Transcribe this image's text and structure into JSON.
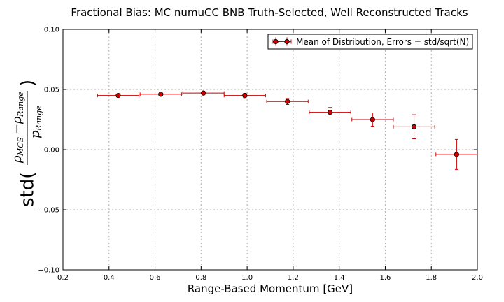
{
  "chart_data": {
    "type": "scatter",
    "title": "Fractional Bias: MC numuCC BNB Truth-Selected, Well Reconstructed Tracks",
    "xlabel": "Range-Based Momentum [GeV]",
    "ylabel": {
      "prefix": "std(",
      "num_p": "p",
      "num_sub1": "MCS",
      "minus": "−",
      "num_p2": "p",
      "num_sub2": "Range",
      "den_p": "p",
      "den_sub": "Range",
      "suffix": ")"
    },
    "xlim": [
      0.2,
      2.0
    ],
    "ylim": [
      -0.1,
      0.1
    ],
    "xticks": [
      "0.2",
      "0.4",
      "0.6",
      "0.8",
      "1.0",
      "1.2",
      "1.4",
      "1.6",
      "1.8",
      "2.0"
    ],
    "yticks": [
      "−0.10",
      "−0.05",
      "0.00",
      "0.05",
      "0.10"
    ],
    "grid": true,
    "legend_position": "top-right",
    "series": [
      {
        "name": "Mean of Distribution, Errors = std/sqrt(N)",
        "color": "#cc0000",
        "points": [
          {
            "x": 0.44,
            "y": 0.045,
            "xerr": 0.09,
            "yerr": 0.001
          },
          {
            "x": 0.625,
            "y": 0.046,
            "xerr": 0.09,
            "yerr": 0.0012
          },
          {
            "x": 0.81,
            "y": 0.047,
            "xerr": 0.09,
            "yerr": 0.0015
          },
          {
            "x": 0.99,
            "y": 0.045,
            "xerr": 0.09,
            "yerr": 0.0018
          },
          {
            "x": 1.175,
            "y": 0.04,
            "xerr": 0.09,
            "yerr": 0.0025
          },
          {
            "x": 1.36,
            "y": 0.031,
            "xerr": 0.09,
            "yerr": 0.004
          },
          {
            "x": 1.545,
            "y": 0.025,
            "xerr": 0.09,
            "yerr": 0.0055
          },
          {
            "x": 1.725,
            "y": 0.019,
            "xerr": 0.09,
            "yerr": 0.01
          },
          {
            "x": 1.91,
            "y": -0.004,
            "xerr": 0.09,
            "yerr": 0.0125
          }
        ]
      }
    ]
  }
}
